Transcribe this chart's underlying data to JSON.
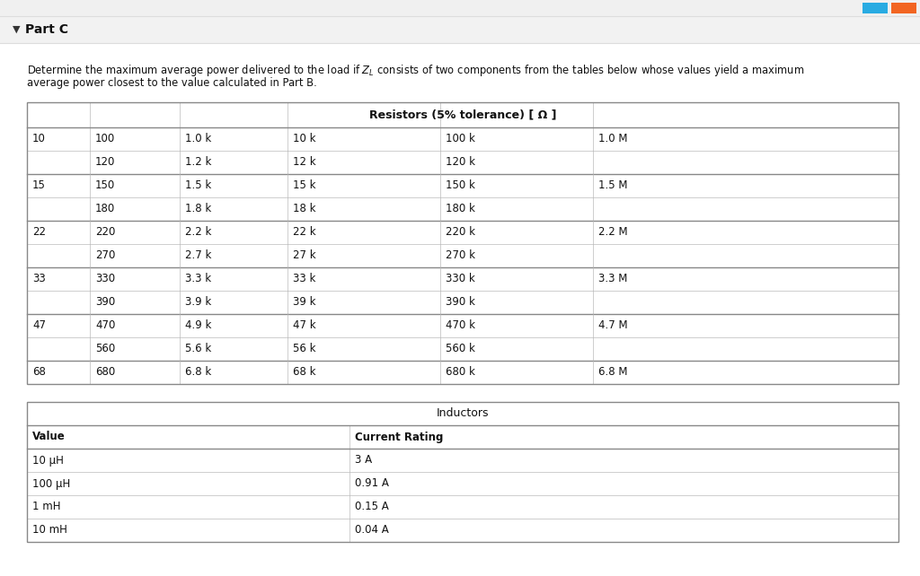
{
  "title": "Part C",
  "bg_color": "#f5f5f5",
  "content_bg": "#ffffff",
  "text_color": "#000000",
  "header_bg": "#f5f5f5",
  "border_dark": "#888888",
  "border_light": "#bbbbbb",
  "resistor_header": "Resistors (5% tolerance) [ Ω ]",
  "resistor_rows": [
    [
      "10",
      "100",
      "1.0 k",
      "10 k",
      "100 k",
      "1.0 M"
    ],
    [
      "",
      "120",
      "1.2 k",
      "12 k",
      "120 k",
      ""
    ],
    [
      "15",
      "150",
      "1.5 k",
      "15 k",
      "150 k",
      "1.5 M"
    ],
    [
      "",
      "180",
      "1.8 k",
      "18 k",
      "180 k",
      ""
    ],
    [
      "22",
      "220",
      "2.2 k",
      "22 k",
      "220 k",
      "2.2 M"
    ],
    [
      "",
      "270",
      "2.7 k",
      "27 k",
      "270 k",
      ""
    ],
    [
      "33",
      "330",
      "3.3 k",
      "33 k",
      "330 k",
      "3.3 M"
    ],
    [
      "",
      "390",
      "3.9 k",
      "39 k",
      "390 k",
      ""
    ],
    [
      "47",
      "470",
      "4.9 k",
      "47 k",
      "470 k",
      "4.7 M"
    ],
    [
      "",
      "560",
      "5.6 k",
      "56 k",
      "560 k",
      ""
    ],
    [
      "68",
      "680",
      "6.8 k",
      "68 k",
      "680 k",
      "6.8 M"
    ]
  ],
  "inductor_header": "Inductors",
  "inductor_col_headers": [
    "Value",
    "Current Rating"
  ],
  "inductor_rows": [
    [
      "10 μH",
      "3 A"
    ],
    [
      "100 μH",
      "0.91 A"
    ],
    [
      "1 mH",
      "0.15 A"
    ],
    [
      "10 mH",
      "0.04 A"
    ]
  ],
  "btn1_color": "#29abe2",
  "btn2_color": "#f26522",
  "desc_line1": "Determine the maximum average power delivered to the load if $Z_L$ consists of two components from the tables below whose values yield a maximum",
  "desc_line2": "average power closest to the value calculated in Part B."
}
